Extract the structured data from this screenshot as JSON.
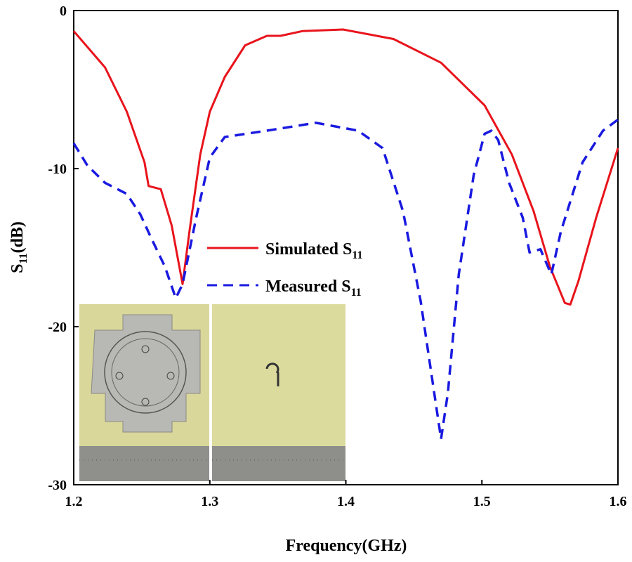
{
  "chart_data": {
    "type": "line",
    "title": "",
    "xlabel": "Frequency(GHz)",
    "ylabel": "S11(dB)",
    "ylabel_main": "S",
    "ylabel_sub": "11",
    "ylabel_unit": "(dB)",
    "xlim": [
      1.2,
      1.6
    ],
    "ylim": [
      -30,
      0
    ],
    "xticks": [
      1.2,
      1.3,
      1.4,
      1.5,
      1.6
    ],
    "xtick_labels": [
      "1.2",
      "1.3",
      "1.4",
      "1.5",
      "1.6"
    ],
    "yticks": [
      0,
      -10,
      -20,
      -30
    ],
    "ytick_labels": [
      "0",
      "-10",
      "-20",
      "-30"
    ],
    "grid": false,
    "legend_position": "center-left",
    "series": [
      {
        "name": "Simulated S11",
        "label_main": "Simulated S",
        "label_sub": "11",
        "color": "#e8141c",
        "style": "solid",
        "x": [
          1.2,
          1.223,
          1.239,
          1.252,
          1.255,
          1.264,
          1.272,
          1.28,
          1.285,
          1.293,
          1.3,
          1.311,
          1.326,
          1.342,
          1.352,
          1.368,
          1.398,
          1.435,
          1.47,
          1.502,
          1.522,
          1.538,
          1.55,
          1.561,
          1.565,
          1.571,
          1.584,
          1.6
        ],
        "y": [
          -1.3,
          -3.6,
          -6.4,
          -9.6,
          -11.1,
          -11.3,
          -13.6,
          -17.3,
          -14,
          -9.1,
          -6.4,
          -4.2,
          -2.2,
          -1.6,
          -1.6,
          -1.3,
          -1.2,
          -1.8,
          -3.3,
          -6,
          -9.1,
          -12.7,
          -16.2,
          -18.5,
          -18.6,
          -17.1,
          -13.1,
          -8.7
        ]
      },
      {
        "name": "Measured S11",
        "label_main": "Measured S",
        "label_sub": "11",
        "color": "#1a1ae0",
        "style": "dashed",
        "x": [
          1.2,
          1.21,
          1.223,
          1.239,
          1.249,
          1.257,
          1.267,
          1.275,
          1.28,
          1.29,
          1.3,
          1.311,
          1.342,
          1.378,
          1.409,
          1.427,
          1.442,
          1.455,
          1.465,
          1.47,
          1.475,
          1.483,
          1.494,
          1.502,
          1.507,
          1.512,
          1.52,
          1.53,
          1.535,
          1.543,
          1.551,
          1.558,
          1.574,
          1.589,
          1.6
        ],
        "y": [
          -8.4,
          -9.8,
          -10.9,
          -11.6,
          -12.9,
          -14.4,
          -16.2,
          -18.2,
          -17.3,
          -13.1,
          -9.3,
          -8,
          -7.6,
          -7.1,
          -7.6,
          -8.7,
          -12.7,
          -18.4,
          -24.2,
          -27.1,
          -24.2,
          -16.7,
          -10.4,
          -7.8,
          -7.6,
          -8.2,
          -10.9,
          -13.1,
          -15.3,
          -15.1,
          -16.7,
          -14,
          -9.6,
          -7.6,
          -6.9
        ]
      }
    ]
  }
}
